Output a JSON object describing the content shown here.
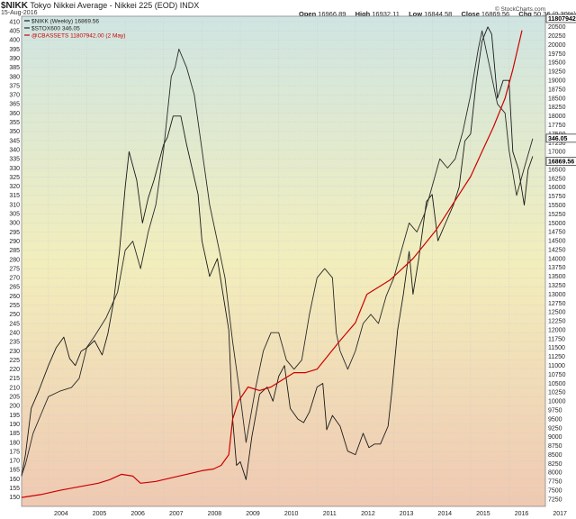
{
  "header": {
    "symbol": "$NIKK",
    "name": "Tokyo Nikkei Average - Nikkei 225 (EOD)",
    "exchange": "INDX",
    "date": "15-Aug-2016",
    "open_label": "Open",
    "open": "16966.89",
    "high_label": "High",
    "high": "16932.11",
    "low_label": "Low",
    "low": "16844.58",
    "close_label": "Close",
    "close": "16869.56",
    "chg_label": "Chg",
    "chg": "50.36 (0.30%)",
    "watermark": "© StockCharts.com"
  },
  "legend": {
    "nikk": "$NIKK (Weekly) 16869.56",
    "stox": "$STOX600 346.05",
    "cbassets": "@CBASSETS 11807942.00 (2 May)"
  },
  "badges": {
    "cbassets": "11807942",
    "stox": "346.05",
    "nikk": "16869.56"
  },
  "colors": {
    "nikk": "#1a1a1a",
    "stox": "#2a2a2a",
    "cbassets": "#cc0000",
    "bg_top": "#cfe5e2",
    "bg_mid": "#f2eebc",
    "bg_bottom": "#efc9b2"
  },
  "chart_data": {
    "type": "line",
    "x_axis": {
      "ticks": [
        "2004",
        "2005",
        "2006",
        "2007",
        "2008",
        "2009",
        "2010",
        "2011",
        "2012",
        "2013",
        "2014",
        "2015",
        "2016",
        "2017"
      ],
      "range": [
        2003.3,
        2016.95
      ]
    },
    "left_axis": {
      "ticks": [
        150,
        155,
        160,
        165,
        170,
        175,
        180,
        185,
        190,
        195,
        200,
        205,
        210,
        215,
        220,
        225,
        230,
        235,
        240,
        245,
        250,
        255,
        260,
        265,
        270,
        275,
        280,
        285,
        290,
        295,
        300,
        305,
        310,
        315,
        320,
        325,
        330,
        335,
        340,
        345,
        350,
        355,
        360,
        365,
        370,
        375,
        380,
        385,
        390,
        395,
        400,
        405,
        410
      ],
      "range": [
        145,
        413
      ]
    },
    "right_axis": {
      "ticks": [
        7250,
        7500,
        7750,
        8000,
        8250,
        8500,
        8750,
        9000,
        9250,
        9500,
        9750,
        10000,
        10250,
        10500,
        10750,
        11000,
        11250,
        11500,
        11750,
        12000,
        12250,
        12500,
        12750,
        13000,
        13250,
        13500,
        13750,
        14000,
        14250,
        14500,
        14750,
        15000,
        15250,
        15500,
        15750,
        16000,
        16250,
        16500,
        16750,
        17000,
        17250,
        17500,
        17750,
        18000,
        18250,
        18500,
        18750,
        19000,
        19250,
        19500,
        19750,
        20000,
        20250,
        20500
      ],
      "range": [
        7050,
        20800
      ]
    },
    "series": [
      {
        "name": "$NIKK (Weekly)",
        "axis": "right",
        "x": [
          2003.3,
          2003.4,
          2003.55,
          2003.75,
          2004.0,
          2004.2,
          2004.4,
          2004.55,
          2004.7,
          2004.85,
          2005.0,
          2005.2,
          2005.4,
          2005.55,
          2005.7,
          2005.85,
          2006.0,
          2006.1,
          2006.3,
          2006.45,
          2006.6,
          2006.75,
          2006.9,
          2007.0,
          2007.1,
          2007.25,
          2007.45,
          2007.6,
          2007.75,
          2007.9,
          2008.0,
          2008.2,
          2008.4,
          2008.55,
          2008.7,
          2008.8,
          2008.9,
          2009.0,
          2009.15,
          2009.3,
          2009.5,
          2009.7,
          2009.85,
          2010.0,
          2010.15,
          2010.3,
          2010.5,
          2010.65,
          2010.8,
          2011.0,
          2011.15,
          2011.25,
          2011.4,
          2011.6,
          2011.8,
          2012.0,
          2012.2,
          2012.35,
          2012.5,
          2012.65,
          2012.85,
          2012.95,
          2013.1,
          2013.25,
          2013.4,
          2013.5,
          2013.65,
          2013.85,
          2014.0,
          2014.15,
          2014.35,
          2014.55,
          2014.7,
          2014.85,
          2015.0,
          2015.15,
          2015.3,
          2015.45,
          2015.55,
          2015.7,
          2015.85,
          2016.0,
          2016.1,
          2016.25,
          2016.4,
          2016.5,
          2016.62
        ],
        "values": [
          7900,
          8500,
          9800,
          10300,
          11000,
          11500,
          11800,
          11200,
          11000,
          11400,
          11500,
          11700,
          11300,
          11900,
          12800,
          14200,
          16000,
          17000,
          16200,
          15000,
          15700,
          16200,
          16800,
          17200,
          17400,
          18000,
          18000,
          17200,
          16500,
          15800,
          14500,
          13500,
          14000,
          13000,
          12000,
          9500,
          8200,
          8300,
          7800,
          9000,
          10200,
          10400,
          10000,
          10700,
          11000,
          9800,
          9500,
          9400,
          9700,
          10400,
          10500,
          9200,
          9600,
          9300,
          8600,
          8500,
          9100,
          8700,
          8800,
          8800,
          9300,
          10300,
          12000,
          13000,
          14200,
          13000,
          14000,
          15600,
          15800,
          14500,
          15000,
          15500,
          16000,
          17300,
          17500,
          19000,
          20100,
          20500,
          20300,
          18500,
          19000,
          19000,
          17000,
          16500,
          15500,
          16500,
          16869.56
        ]
      },
      {
        "name": "$STOX600",
        "axis": "left",
        "x": [
          2003.3,
          2003.4,
          2003.6,
          2003.8,
          2004.0,
          2004.3,
          2004.6,
          2004.8,
          2005.0,
          2005.2,
          2005.5,
          2005.8,
          2006.0,
          2006.2,
          2006.4,
          2006.6,
          2006.8,
          2007.0,
          2007.2,
          2007.3,
          2007.4,
          2007.6,
          2007.8,
          2008.0,
          2008.2,
          2008.4,
          2008.6,
          2008.8,
          2009.0,
          2009.15,
          2009.4,
          2009.6,
          2009.8,
          2010.0,
          2010.2,
          2010.4,
          2010.6,
          2010.8,
          2011.0,
          2011.2,
          2011.4,
          2011.5,
          2011.6,
          2011.8,
          2012.0,
          2012.2,
          2012.4,
          2012.6,
          2012.8,
          2013.0,
          2013.2,
          2013.4,
          2013.6,
          2013.8,
          2014.0,
          2014.2,
          2014.4,
          2014.6,
          2014.8,
          2015.0,
          2015.2,
          2015.3,
          2015.5,
          2015.7,
          2015.9,
          2016.0,
          2016.2,
          2016.4,
          2016.62
        ],
        "values": [
          162,
          168,
          185,
          195,
          205,
          208,
          210,
          215,
          232,
          238,
          248,
          262,
          285,
          290,
          275,
          295,
          310,
          340,
          380,
          385,
          395,
          385,
          370,
          340,
          310,
          290,
          270,
          235,
          205,
          180,
          210,
          230,
          240,
          240,
          225,
          220,
          225,
          250,
          270,
          275,
          270,
          240,
          230,
          220,
          230,
          245,
          250,
          245,
          260,
          270,
          285,
          300,
          295,
          305,
          320,
          335,
          330,
          335,
          350,
          370,
          395,
          405,
          385,
          365,
          360,
          340,
          315,
          330,
          346.05
        ]
      },
      {
        "name": "@CBASSETS",
        "axis": "right",
        "x": [
          2003.3,
          2003.8,
          2004.3,
          2004.8,
          2005.3,
          2005.6,
          2005.9,
          2006.2,
          2006.4,
          2006.8,
          2007.2,
          2007.6,
          2008.0,
          2008.3,
          2008.5,
          2008.7,
          2008.8,
          2008.95,
          2009.2,
          2009.5,
          2009.8,
          2010.1,
          2010.4,
          2010.7,
          2011.0,
          2011.3,
          2011.6,
          2012.0,
          2012.3,
          2012.6,
          2012.9,
          2013.2,
          2013.5,
          2013.8,
          2014.1,
          2014.4,
          2014.7,
          2015.0,
          2015.3,
          2015.6,
          2015.9,
          2016.1,
          2016.34
        ],
        "values": [
          7300,
          7380,
          7500,
          7600,
          7700,
          7800,
          7950,
          7900,
          7700,
          7750,
          7850,
          7950,
          8050,
          8100,
          8200,
          8500,
          9500,
          10000,
          10400,
          10300,
          10400,
          10600,
          10800,
          10800,
          10900,
          11300,
          11700,
          12200,
          13000,
          13200,
          13400,
          13700,
          14000,
          14400,
          14800,
          15300,
          15800,
          16300,
          17000,
          17700,
          18500,
          19300,
          20400
        ]
      }
    ]
  }
}
